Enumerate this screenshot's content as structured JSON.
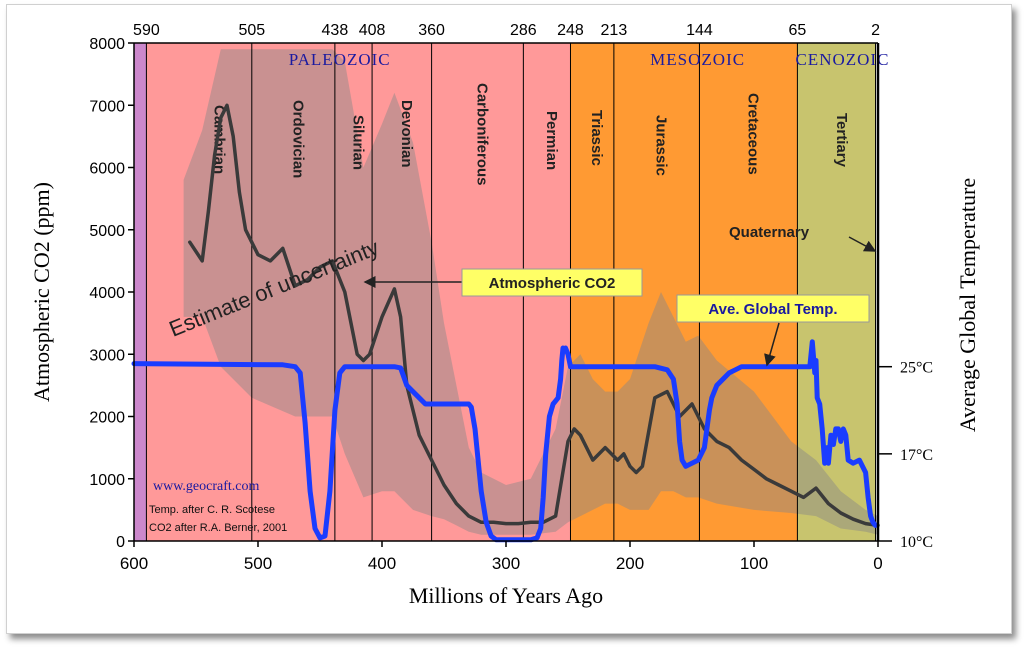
{
  "chart_data": {
    "type": "line",
    "xlabel": "Millions of Years Ago",
    "ylabel": "Atmospheric CO2 (ppm)",
    "y2label": "Average Global Temperature",
    "xlim": [
      600,
      0
    ],
    "ylim": [
      0,
      8000
    ],
    "x_ticks": [
      "600",
      "500",
      "400",
      "300",
      "200",
      "100",
      "0"
    ],
    "y_ticks": [
      "0",
      "1000",
      "2000",
      "3000",
      "4000",
      "5000",
      "6000",
      "7000",
      "8000"
    ],
    "y2_ticks": [
      {
        "label": "25°C",
        "co2_level": 2800
      },
      {
        "label": "17°C",
        "co2_level": 1400
      },
      {
        "label": "10°C",
        "co2_level": 0
      }
    ],
    "top_ticks": [
      "590",
      "505",
      "438",
      "408",
      "360",
      "286",
      "248",
      "213",
      "144",
      "65",
      "2"
    ],
    "eras": [
      {
        "label": "PALEOZOIC",
        "start": 590,
        "end": 248
      },
      {
        "label": "MESOZOIC",
        "start": 248,
        "end": 65
      },
      {
        "label": "CENOZOIC",
        "start": 65,
        "end": 2
      }
    ],
    "periods": [
      {
        "label": "Cambrian",
        "start": 590,
        "end": 505
      },
      {
        "label": "Ordovician",
        "start": 505,
        "end": 438
      },
      {
        "label": "Silurian",
        "start": 438,
        "end": 408
      },
      {
        "label": "Devonian",
        "start": 408,
        "end": 360
      },
      {
        "label": "Carboniferous",
        "start": 360,
        "end": 286
      },
      {
        "label": "Permian",
        "start": 286,
        "end": 248
      },
      {
        "label": "Triassic",
        "start": 248,
        "end": 213
      },
      {
        "label": "Jurassic",
        "start": 213,
        "end": 144
      },
      {
        "label": "Cretaceous",
        "start": 144,
        "end": 65
      },
      {
        "label": "Tertiary",
        "start": 65,
        "end": 2
      }
    ],
    "quaternary_label": "Quaternary",
    "series": [
      {
        "name": "Atmospheric CO2",
        "color": "#3a3a3a",
        "x": [
          555,
          545,
          540,
          535,
          530,
          525,
          520,
          515,
          510,
          500,
          490,
          480,
          470,
          460,
          450,
          440,
          430,
          420,
          415,
          410,
          400,
          390,
          385,
          380,
          370,
          360,
          350,
          340,
          330,
          320,
          310,
          300,
          290,
          280,
          270,
          260,
          250,
          245,
          240,
          235,
          230,
          220,
          210,
          205,
          200,
          195,
          190,
          180,
          170,
          160,
          150,
          140,
          130,
          120,
          110,
          100,
          90,
          80,
          70,
          60,
          50,
          40,
          30,
          20,
          10,
          0
        ],
        "values": [
          4800,
          4500,
          5300,
          6200,
          6800,
          7000,
          6500,
          5600,
          5000,
          4600,
          4500,
          4700,
          4100,
          4200,
          4400,
          4500,
          4000,
          3000,
          2900,
          3000,
          3600,
          4050,
          3600,
          2500,
          1700,
          1300,
          900,
          600,
          400,
          300,
          300,
          280,
          280,
          300,
          300,
          400,
          1600,
          1800,
          1700,
          1500,
          1300,
          1500,
          1300,
          1400,
          1200,
          1100,
          1200,
          2300,
          2400,
          2000,
          2200,
          1800,
          1600,
          1500,
          1300,
          1150,
          1000,
          900,
          800,
          700,
          850,
          600,
          450,
          350,
          280,
          250
        ]
      },
      {
        "name": "Ave. Global Temp.",
        "color": "#1a3cff",
        "x": [
          600,
          480,
          470,
          466,
          462,
          458,
          454,
          450,
          446,
          442,
          438,
          434,
          430,
          420,
          400,
          390,
          385,
          380,
          370,
          365,
          360,
          350,
          340,
          330,
          328,
          325,
          320,
          316,
          312,
          308,
          300,
          290,
          280,
          275,
          272,
          270,
          268,
          265,
          262,
          260,
          258,
          256,
          255,
          254,
          253,
          252,
          250,
          248,
          240,
          230,
          220,
          210,
          200,
          190,
          180,
          170,
          165,
          162,
          160,
          158,
          155,
          150,
          145,
          140,
          138,
          136,
          134,
          132,
          130,
          125,
          120,
          115,
          110,
          100,
          90,
          80,
          70,
          60,
          55,
          53,
          51,
          50,
          49,
          47,
          45,
          43,
          42,
          41,
          40,
          38,
          36,
          34,
          32,
          30,
          28,
          26,
          24,
          20,
          15,
          10,
          8,
          6,
          4,
          2
        ],
        "values": [
          2850,
          2830,
          2800,
          2700,
          1900,
          800,
          200,
          50,
          80,
          800,
          2100,
          2700,
          2800,
          2800,
          2800,
          2800,
          2780,
          2500,
          2300,
          2200,
          2200,
          2200,
          2200,
          2200,
          2150,
          1800,
          800,
          300,
          80,
          20,
          20,
          20,
          20,
          50,
          200,
          700,
          1400,
          2000,
          2200,
          2250,
          2300,
          2600,
          2900,
          3100,
          3050,
          3100,
          3000,
          2800,
          2800,
          2800,
          2800,
          2800,
          2800,
          2800,
          2800,
          2750,
          2600,
          2200,
          1600,
          1300,
          1200,
          1250,
          1300,
          1500,
          1800,
          2100,
          2300,
          2400,
          2500,
          2600,
          2700,
          2750,
          2800,
          2800,
          2800,
          2800,
          2800,
          2800,
          2800,
          3200,
          2700,
          2900,
          2300,
          2200,
          1800,
          1250,
          1300,
          1500,
          1250,
          1700,
          1550,
          1800,
          1800,
          1600,
          1800,
          1700,
          1300,
          1250,
          1300,
          1100,
          700,
          400,
          300,
          250
        ]
      }
    ],
    "uncertainty_band": {
      "color": "#888888",
      "upper": [
        [
          560,
          5800
        ],
        [
          545,
          6600
        ],
        [
          530,
          7900
        ],
        [
          505,
          7900
        ],
        [
          470,
          7900
        ],
        [
          440,
          7900
        ],
        [
          430,
          7700
        ],
        [
          415,
          6000
        ],
        [
          400,
          6700
        ],
        [
          390,
          7200
        ],
        [
          375,
          6400
        ],
        [
          360,
          4800
        ],
        [
          350,
          3500
        ],
        [
          340,
          2500
        ],
        [
          330,
          1500
        ],
        [
          320,
          1100
        ],
        [
          300,
          900
        ],
        [
          280,
          1000
        ],
        [
          260,
          1800
        ],
        [
          250,
          2800
        ],
        [
          240,
          3000
        ],
        [
          230,
          2600
        ],
        [
          220,
          2400
        ],
        [
          210,
          2400
        ],
        [
          200,
          2600
        ],
        [
          185,
          3500
        ],
        [
          175,
          4000
        ],
        [
          165,
          3600
        ],
        [
          155,
          3200
        ],
        [
          145,
          3300
        ],
        [
          130,
          2900
        ],
        [
          100,
          2400
        ],
        [
          70,
          1600
        ],
        [
          50,
          1300
        ],
        [
          30,
          800
        ],
        [
          10,
          500
        ],
        [
          0,
          400
        ]
      ],
      "lower": [
        [
          0,
          100
        ],
        [
          10,
          150
        ],
        [
          30,
          200
        ],
        [
          50,
          400
        ],
        [
          70,
          450
        ],
        [
          100,
          500
        ],
        [
          130,
          600
        ],
        [
          145,
          700
        ],
        [
          155,
          700
        ],
        [
          165,
          800
        ],
        [
          175,
          800
        ],
        [
          185,
          500
        ],
        [
          200,
          500
        ],
        [
          210,
          600
        ],
        [
          220,
          600
        ],
        [
          230,
          500
        ],
        [
          240,
          400
        ],
        [
          250,
          300
        ],
        [
          260,
          150
        ],
        [
          280,
          100
        ],
        [
          300,
          100
        ],
        [
          320,
          100
        ],
        [
          330,
          150
        ],
        [
          340,
          250
        ],
        [
          350,
          350
        ],
        [
          360,
          400
        ],
        [
          375,
          500
        ],
        [
          390,
          800
        ],
        [
          400,
          800
        ],
        [
          415,
          700
        ],
        [
          430,
          1400
        ],
        [
          440,
          2000
        ],
        [
          470,
          2000
        ],
        [
          505,
          2300
        ],
        [
          530,
          2800
        ],
        [
          545,
          3600
        ],
        [
          560,
          3600
        ]
      ]
    },
    "annotations": {
      "uncertainty": "Estimate of uncertainty",
      "co2_box": "Atmospheric CO2",
      "temp_box": "Ave. Global Temp.",
      "website": "www.geocraft.com",
      "credit_temp": "Temp. after C. R. Scotese",
      "credit_co2": "CO2 after R.A. Berner, 2001"
    },
    "colors": {
      "paleozoic": "#ff9999",
      "cambrian_strip": "#cc88cc",
      "mesozoic": "#ff9a33",
      "cenozoic": "#c8c46e",
      "era_label": "#1a1aa0",
      "label_box": "#ffff66",
      "axis": "#000000"
    }
  }
}
